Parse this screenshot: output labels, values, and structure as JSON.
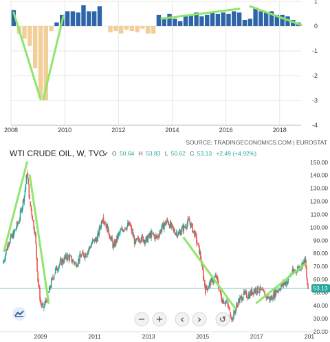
{
  "top_chart": {
    "x_ticks": [
      "2008",
      "2010",
      "2012",
      "2014",
      "2016",
      "2018"
    ],
    "y_ticks": [
      "1",
      "0",
      "-1",
      "-2",
      "-3",
      "-4"
    ],
    "colors": {
      "positive": "#2e65a8",
      "negative": "#f2cf9a",
      "trend": "#8ee66a"
    }
  },
  "bottom_chart": {
    "source": "SOURCE: TRADINGECONOMICS.COM | EUROSTAT",
    "title": "WTI CRUDE OIL, W, TVC",
    "ohlc": {
      "o_key": "O",
      "o": "50.64",
      "h_key": "H",
      "h": "53.83",
      "l_key": "L",
      "l": "50.62",
      "c_key": "C",
      "c": "53.13",
      "change": "+2.49 (+4.92%)"
    },
    "price_badge": "53.13",
    "x_ticks": [
      "2009",
      "2011",
      "2013",
      "2015",
      "2017",
      "201"
    ],
    "y_ticks": [
      "150.00",
      "140.00",
      "130.00",
      "120.00",
      "110.00",
      "100.00",
      "90.00",
      "80.00",
      "70.00",
      "60.00",
      "50.00",
      "40.00",
      "30.00",
      "20.00"
    ],
    "colors": {
      "up": "#26a69a",
      "down": "#ef5350",
      "trend": "#8ee66a",
      "badge": "#26a69a"
    }
  },
  "controls": {
    "zoom_out": "−",
    "zoom_in": "+",
    "back": "‹",
    "forward": "›",
    "reset": "↺"
  },
  "chart_data": [
    {
      "type": "bar",
      "title": "",
      "xlabel": "",
      "ylabel": "",
      "xlim": [
        2008,
        2018.8
      ],
      "ylim": [
        -4,
        1
      ],
      "grid": true,
      "x": [
        2008.1,
        2008.3,
        2008.5,
        2008.7,
        2008.9,
        2009.1,
        2009.3,
        2009.5,
        2009.7,
        2009.9,
        2010.1,
        2010.3,
        2010.5,
        2010.7,
        2010.9,
        2011.1,
        2011.3,
        2011.7,
        2011.9,
        2012.1,
        2012.3,
        2012.5,
        2012.7,
        2012.9,
        2013.1,
        2013.3,
        2013.5,
        2013.7,
        2013.9,
        2014.1,
        2014.3,
        2014.5,
        2014.7,
        2014.9,
        2015.1,
        2015.3,
        2015.5,
        2015.7,
        2015.9,
        2016.1,
        2016.3,
        2016.5,
        2016.7,
        2016.9,
        2017.1,
        2017.3,
        2017.5,
        2017.7,
        2017.9,
        2018.1,
        2018.3,
        2018.5,
        2018.7
      ],
      "values": [
        0.65,
        -0.3,
        -0.5,
        -0.8,
        -1.7,
        -2.9,
        -3.0,
        -0.2,
        0.15,
        0.45,
        0.6,
        0.6,
        0.55,
        0.85,
        0.6,
        0.6,
        0.8,
        -0.25,
        -0.2,
        -0.3,
        -0.15,
        -0.2,
        -0.25,
        -0.1,
        -0.3,
        -0.3,
        0.45,
        0.35,
        0.5,
        0.3,
        0.2,
        0.45,
        0.45,
        0.55,
        0.4,
        0.45,
        0.55,
        0.5,
        0.55,
        0.5,
        0.6,
        0.55,
        0.25,
        0.3,
        0.75,
        0.6,
        0.55,
        0.6,
        0.45,
        0.45,
        0.4,
        0.25,
        0.15
      ],
      "trend_lines": [
        {
          "points": [
            [
              2008.1,
              0.55
            ],
            [
              2009.1,
              -2.95
            ]
          ]
        },
        {
          "points": [
            [
              2009.2,
              -2.95
            ],
            [
              2009.95,
              0.4
            ]
          ]
        },
        {
          "points": [
            [
              2013.6,
              0.3
            ],
            [
              2016.5,
              0.7
            ]
          ]
        },
        {
          "points": [
            [
              2016.9,
              0.8
            ],
            [
              2018.8,
              0.05
            ]
          ]
        }
      ]
    },
    {
      "type": "line",
      "title": "WTI CRUDE OIL, W, TVC",
      "xlabel": "",
      "ylabel": "",
      "xlim": [
        2007.6,
        2018.95
      ],
      "ylim": [
        22,
        152
      ],
      "grid": false,
      "x": [
        2007.6,
        2007.8,
        2008.0,
        2008.2,
        2008.4,
        2008.5,
        2008.6,
        2008.8,
        2008.9,
        2009.0,
        2009.1,
        2009.3,
        2009.5,
        2009.7,
        2010.0,
        2010.3,
        2010.5,
        2010.7,
        2010.9,
        2011.1,
        2011.3,
        2011.5,
        2011.7,
        2011.9,
        2012.1,
        2012.3,
        2012.5,
        2012.7,
        2012.9,
        2013.1,
        2013.3,
        2013.5,
        2013.7,
        2013.9,
        2014.1,
        2014.3,
        2014.5,
        2014.7,
        2014.9,
        2015.1,
        2015.3,
        2015.5,
        2015.7,
        2015.9,
        2016.0,
        2016.1,
        2016.3,
        2016.5,
        2016.7,
        2016.9,
        2017.1,
        2017.3,
        2017.5,
        2017.7,
        2017.9,
        2018.1,
        2018.3,
        2018.5,
        2018.7,
        2018.8,
        2018.85,
        2018.9
      ],
      "values": [
        72,
        88,
        95,
        105,
        125,
        142,
        120,
        95,
        60,
        42,
        38,
        50,
        65,
        72,
        78,
        72,
        78,
        80,
        88,
        92,
        108,
        98,
        85,
        95,
        100,
        102,
        88,
        92,
        90,
        95,
        92,
        100,
        105,
        98,
        95,
        100,
        105,
        95,
        80,
        52,
        58,
        62,
        45,
        42,
        35,
        30,
        42,
        48,
        48,
        52,
        52,
        48,
        45,
        50,
        55,
        58,
        65,
        68,
        72,
        75,
        60,
        53
      ]
    }
  ]
}
